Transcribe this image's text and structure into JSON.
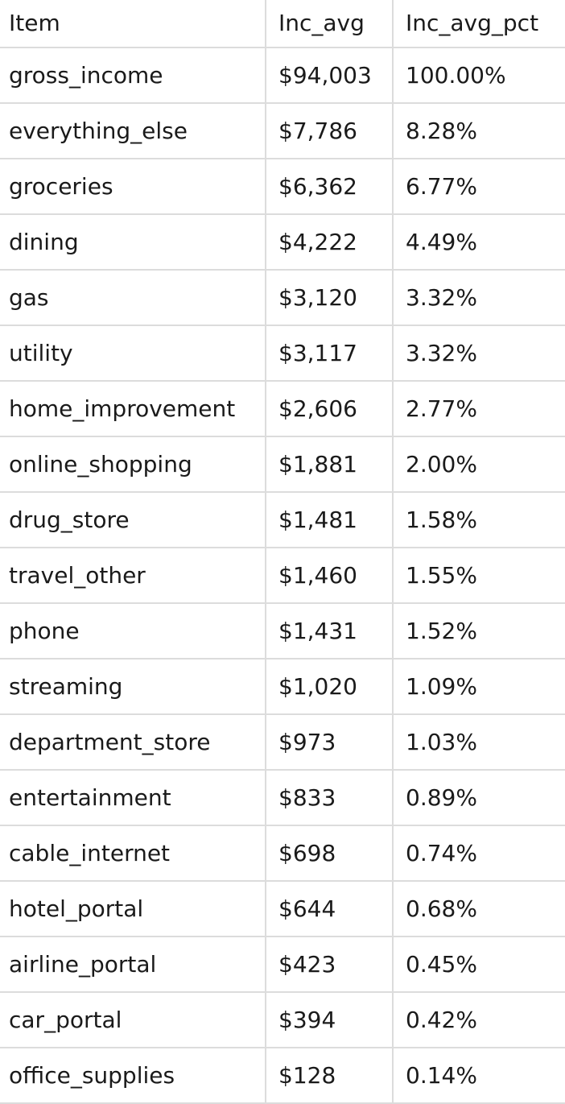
{
  "table": {
    "headers": [
      "Item",
      "Inc_avg",
      "Inc_avg_pct"
    ],
    "rows": [
      [
        "gross_income",
        "$94,003",
        "100.00%"
      ],
      [
        "everything_else",
        "$7,786",
        "8.28%"
      ],
      [
        "groceries",
        "$6,362",
        "6.77%"
      ],
      [
        "dining",
        "$4,222",
        "4.49%"
      ],
      [
        "gas",
        "$3,120",
        "3.32%"
      ],
      [
        "utility",
        "$3,117",
        "3.32%"
      ],
      [
        "home_improvement",
        "$2,606",
        "2.77%"
      ],
      [
        "online_shopping",
        "$1,881",
        "2.00%"
      ],
      [
        "drug_store",
        "$1,481",
        "1.58%"
      ],
      [
        "travel_other",
        "$1,460",
        "1.55%"
      ],
      [
        "phone",
        "$1,431",
        "1.52%"
      ],
      [
        "streaming",
        "$1,020",
        "1.09%"
      ],
      [
        "department_store",
        "$973",
        "1.03%"
      ],
      [
        "entertainment",
        "$833",
        "0.89%"
      ],
      [
        "cable_internet",
        "$698",
        "0.74%"
      ],
      [
        "hotel_portal",
        "$644",
        "0.68%"
      ],
      [
        "airline_portal",
        "$423",
        "0.45%"
      ],
      [
        "car_portal",
        "$394",
        "0.42%"
      ],
      [
        "office_supplies",
        "$128",
        "0.14%"
      ]
    ]
  },
  "colors": {
    "grid": "#dcdcdc",
    "text": "#1a1a1a",
    "background": "#ffffff"
  }
}
